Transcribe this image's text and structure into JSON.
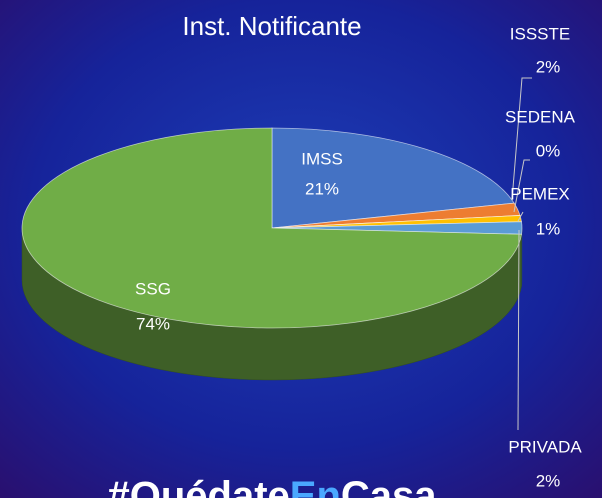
{
  "chart_data": {
    "type": "pie3d",
    "title": "Inst. Notificante",
    "categories": [
      "IMSS",
      "ISSSTE",
      "SEDENA",
      "PEMEX",
      "PRIVADA",
      "SSG"
    ],
    "values": [
      21,
      2,
      0,
      1,
      2,
      74
    ],
    "value_labels": [
      "21%",
      "2%",
      "0%",
      "1%",
      "2%",
      "74%"
    ],
    "colors": [
      "#4472c4",
      "#ed7d31",
      "#a5a5a5",
      "#ffc000",
      "#5b9bd5",
      "#70ad47"
    ]
  },
  "hashtag": [
    "#Quédate",
    "En",
    "Casa"
  ]
}
